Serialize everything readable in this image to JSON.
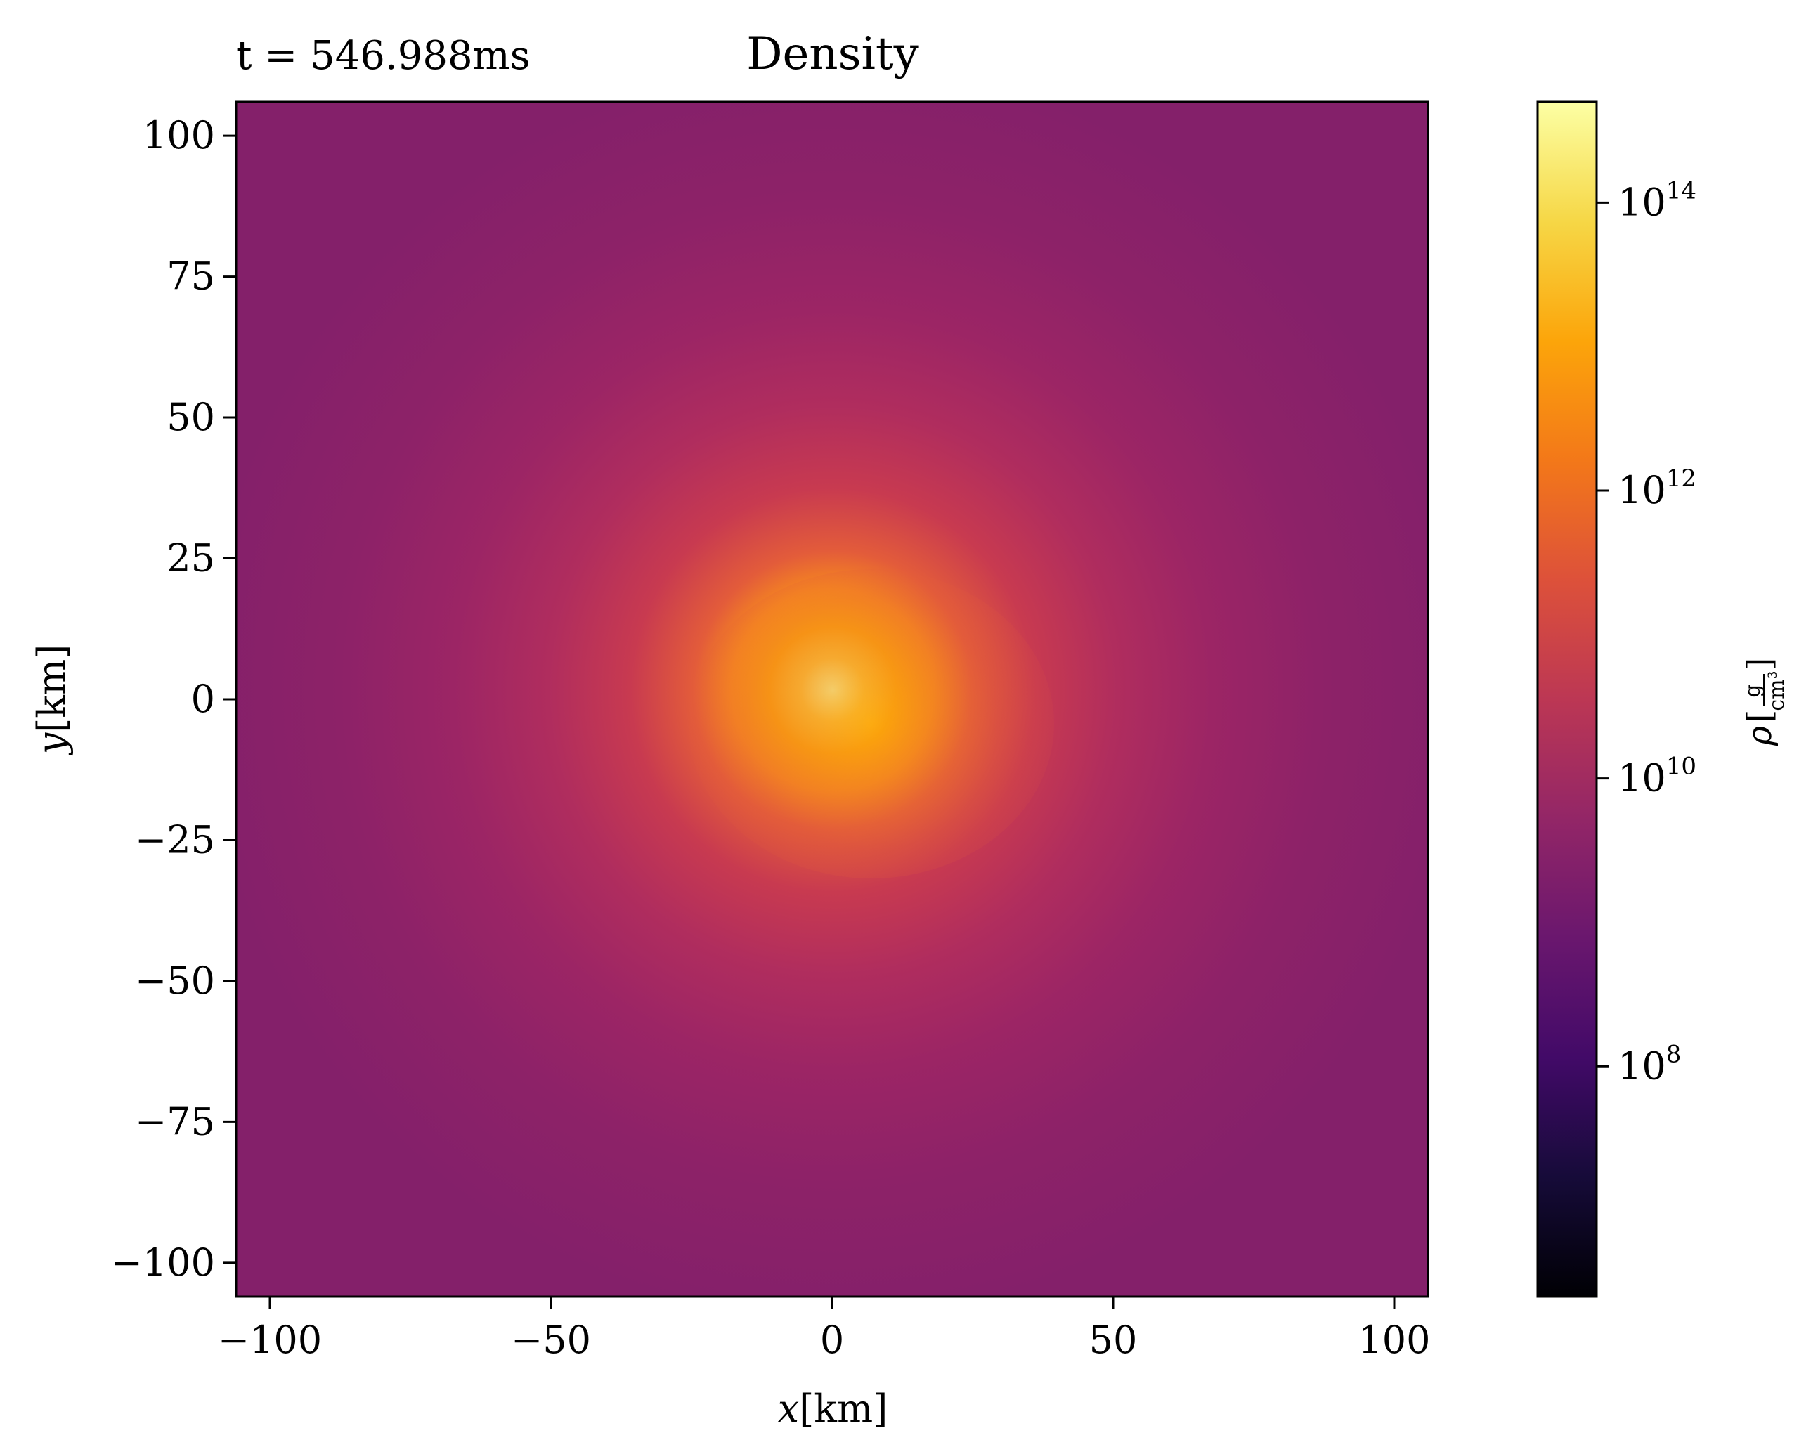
{
  "chart_data": {
    "type": "heatmap",
    "title": "Density",
    "time_label": "t = 546.988ms",
    "x_range": [
      -106,
      106
    ],
    "y_range": [
      -106,
      106
    ],
    "x_ticks": [
      -100,
      -50,
      0,
      50,
      100
    ],
    "y_ticks": [
      -100,
      -75,
      -50,
      -25,
      0,
      25,
      50,
      75,
      100
    ],
    "x_tick_labels": [
      "−100",
      "−50",
      "0",
      "50",
      "100"
    ],
    "y_tick_labels": [
      "−100",
      "−75",
      "−50",
      "−25",
      "0",
      "25",
      "50",
      "75",
      "100"
    ],
    "xlabel_var": "x",
    "xlabel_unit": "[km]",
    "ylabel_var": "y",
    "ylabel_unit": "[km]",
    "colorbar": {
      "scale": "log",
      "cmap": "inferno",
      "log10_range": [
        6.4,
        14.7
      ],
      "tick_exponents": [
        8,
        10,
        12,
        14
      ],
      "tick_base": "10",
      "tick_sup": [
        "8",
        "10",
        "12",
        "14"
      ],
      "label_var": "ρ",
      "label_num": "g",
      "label_den": "cm³"
    },
    "density_field_log10": {
      "center_peak": 14.7,
      "core_level": 13.3,
      "core_radius_km": 17,
      "ring_level": 11.0,
      "ring_radius_km": 45,
      "outer_level": 10.2,
      "outer_radius_km": 100
    },
    "grid": false
  }
}
